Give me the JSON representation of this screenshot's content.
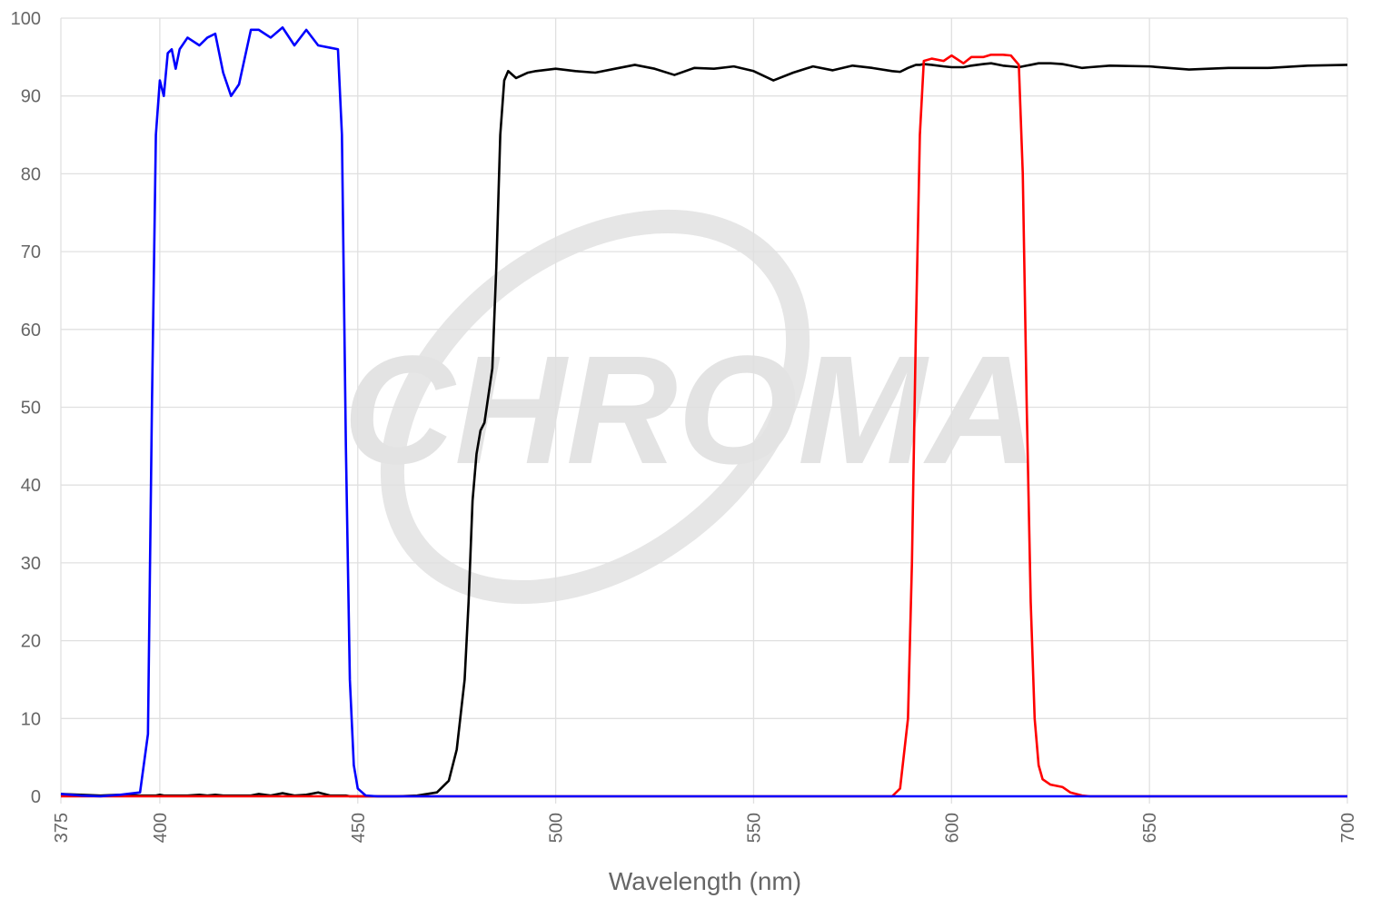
{
  "chart_data": {
    "type": "line",
    "watermark": "CHROMA",
    "x_label": "Wavelength (nm)",
    "xlim": [
      375,
      700
    ],
    "ylim": [
      0,
      100
    ],
    "xticks": [
      375,
      400,
      450,
      500,
      550,
      600,
      650,
      700
    ],
    "yticks": [
      0,
      10,
      20,
      30,
      40,
      50,
      60,
      70,
      80,
      90,
      100
    ],
    "grid": true,
    "x": [
      375,
      380,
      385,
      390,
      395,
      397,
      398,
      399,
      400,
      401,
      402,
      403,
      404,
      405,
      407,
      410,
      412,
      414,
      416,
      418,
      420,
      423,
      425,
      428,
      431,
      434,
      437,
      440,
      443,
      445,
      446,
      447,
      448,
      449,
      450,
      452,
      455,
      460,
      465,
      470,
      473,
      475,
      477,
      478,
      479,
      480,
      481,
      482,
      484,
      485,
      486,
      487,
      488,
      490,
      493,
      495,
      500,
      505,
      510,
      515,
      520,
      525,
      530,
      535,
      540,
      545,
      550,
      555,
      560,
      565,
      570,
      575,
      580,
      585,
      587,
      589,
      590,
      591,
      592,
      593,
      595,
      598,
      600,
      603,
      605,
      608,
      610,
      613,
      615,
      617,
      618,
      619,
      620,
      621,
      622,
      623,
      625,
      628,
      630,
      633,
      635,
      640,
      650,
      660,
      670,
      680,
      690,
      700
    ],
    "series": [
      {
        "color": "#000000",
        "values": [
          0.3,
          0.2,
          0.1,
          0.2,
          0.1,
          0.1,
          0.1,
          0.1,
          0.2,
          0.1,
          0.1,
          0.1,
          0.1,
          0.1,
          0.1,
          0.2,
          0.1,
          0.2,
          0.1,
          0.1,
          0.1,
          0.1,
          0.3,
          0.1,
          0.4,
          0.1,
          0.2,
          0.5,
          0.1,
          0.1,
          0.1,
          0.1,
          0,
          0,
          0,
          0,
          0,
          0,
          0.1,
          0.5,
          2,
          6,
          15,
          25,
          38,
          44,
          47,
          48,
          55,
          68,
          85,
          92,
          93.2,
          92.3,
          93,
          93.2,
          93.5,
          93.2,
          93,
          93.5,
          94,
          93.5,
          92.7,
          93.6,
          93.5,
          93.8,
          93.2,
          92,
          93,
          93.8,
          93.3,
          93.9,
          93.6,
          93.2,
          93.1,
          93.6,
          93.8,
          94,
          94,
          94.1,
          94,
          93.8,
          93.7,
          93.7,
          93.9,
          94.1,
          94.2,
          93.9,
          93.8,
          93.7,
          93.8,
          93.9,
          94,
          94.1,
          94.2,
          94.2,
          94.2,
          94.1,
          93.9,
          93.6,
          93.7,
          93.9,
          93.8,
          93.4,
          93.6,
          93.6,
          93.9,
          94
        ]
      },
      {
        "color": "#ff0000",
        "values": [
          0,
          0,
          0,
          0,
          0,
          0,
          0,
          0,
          0,
          0,
          0,
          0,
          0,
          0,
          0,
          0,
          0,
          0,
          0,
          0,
          0,
          0,
          0,
          0,
          0,
          0,
          0,
          0,
          0,
          0,
          0,
          0,
          0,
          0,
          0,
          0,
          0,
          0,
          0,
          0,
          0,
          0,
          0,
          0,
          0,
          0,
          0,
          0,
          0,
          0,
          0,
          0,
          0,
          0,
          0,
          0,
          0,
          0,
          0,
          0,
          0,
          0,
          0,
          0,
          0,
          0,
          0,
          0,
          0,
          0,
          0,
          0,
          0,
          0,
          1,
          10,
          30,
          60,
          85,
          94.5,
          94.8,
          94.5,
          95.2,
          94.2,
          95,
          95,
          95.3,
          95.3,
          95.2,
          94,
          80,
          50,
          25,
          10,
          4,
          2.2,
          1.5,
          1.2,
          0.5,
          0.1,
          0,
          0,
          0,
          0,
          0,
          0,
          0,
          0
        ]
      },
      {
        "color": "#0000ff",
        "values": [
          0.3,
          0.1,
          0,
          0.2,
          0.5,
          8,
          50,
          85,
          92,
          90,
          95.5,
          96,
          93.5,
          96,
          97.5,
          96.5,
          97.5,
          98,
          93,
          90,
          91.5,
          98.5,
          98.5,
          97.5,
          98.8,
          96.5,
          98.5,
          96.5,
          96.2,
          96,
          85,
          45,
          15,
          4,
          1,
          0.1,
          0,
          0,
          0,
          0,
          0,
          0,
          0,
          0,
          0,
          0,
          0,
          0,
          0,
          0,
          0,
          0,
          0,
          0,
          0,
          0,
          0,
          0,
          0,
          0,
          0,
          0,
          0,
          0,
          0,
          0,
          0,
          0,
          0,
          0,
          0,
          0,
          0,
          0,
          0,
          0,
          0,
          0,
          0,
          0,
          0,
          0,
          0,
          0,
          0,
          0,
          0,
          0,
          0,
          0,
          0,
          0,
          0,
          0,
          0,
          0,
          0,
          0,
          0,
          0,
          0,
          0,
          0,
          0,
          0,
          0,
          0,
          0
        ]
      }
    ]
  }
}
